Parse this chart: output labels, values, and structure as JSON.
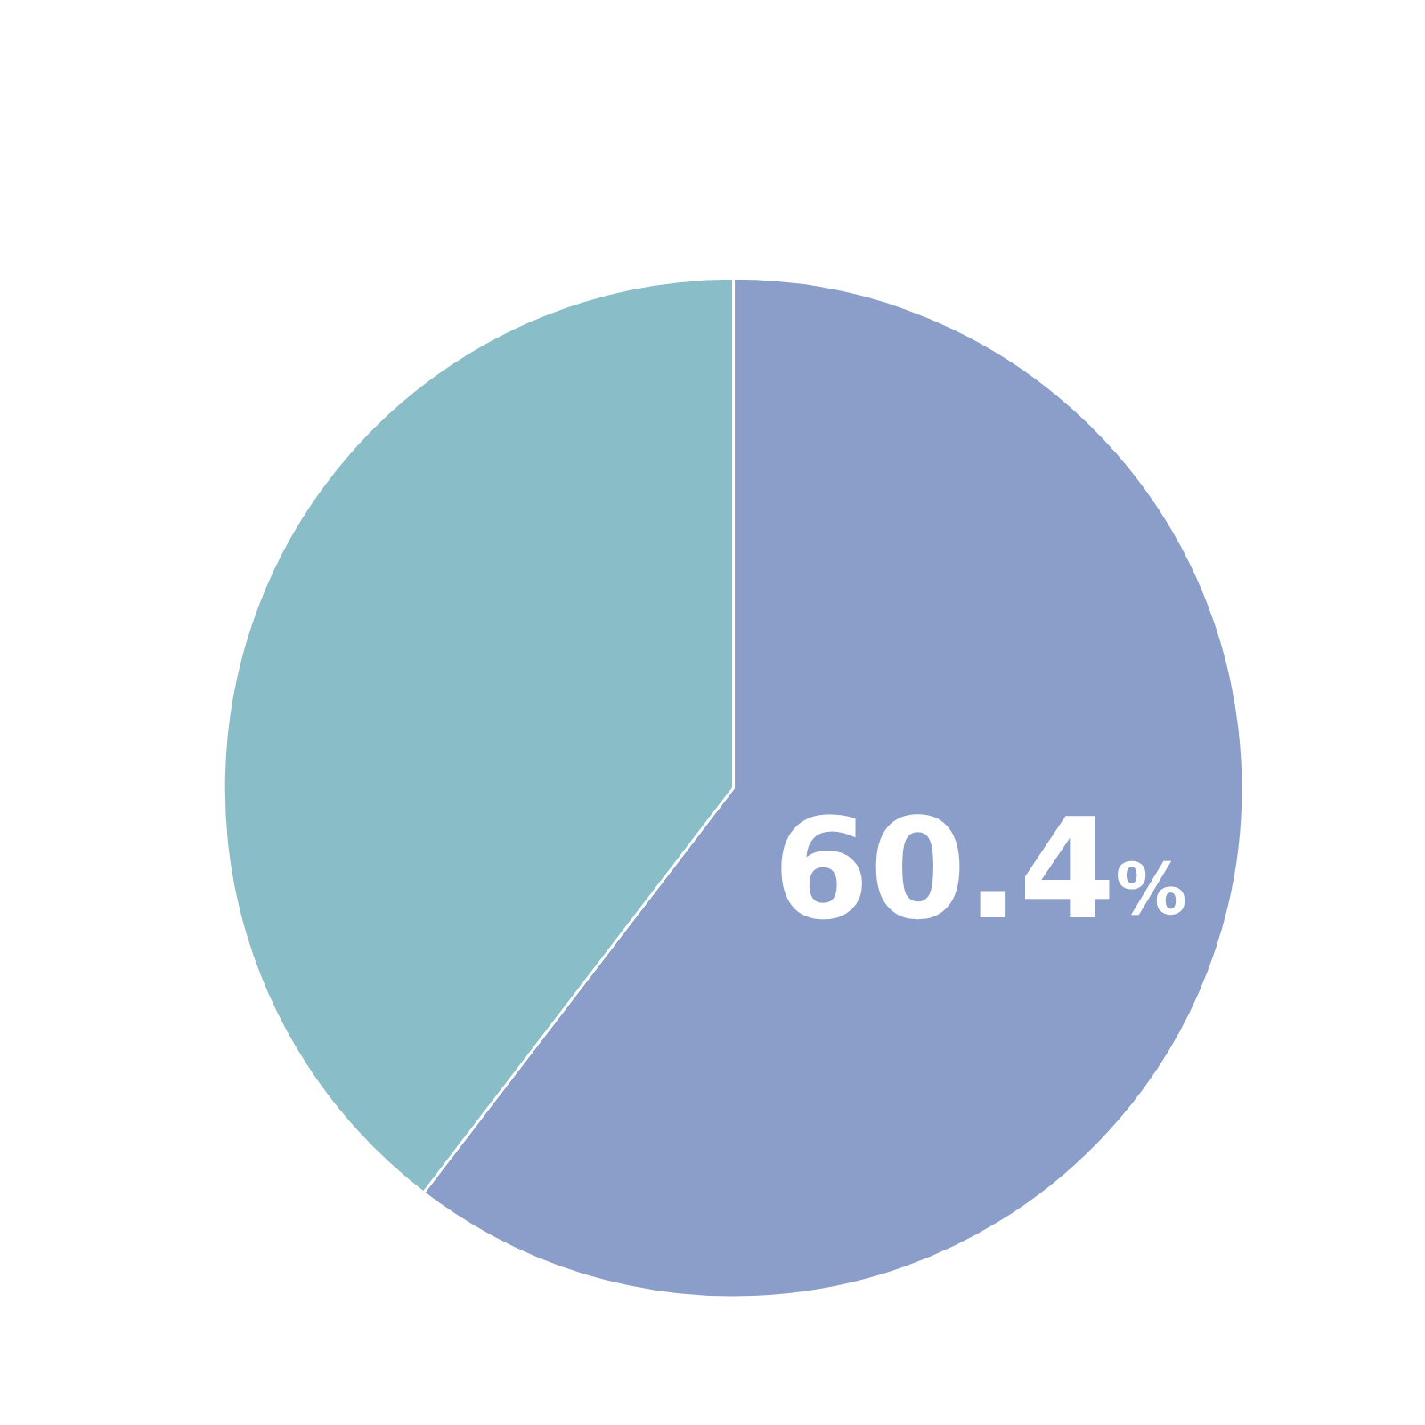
{
  "chart_data": {
    "type": "pie",
    "categories": [
      null,
      null
    ],
    "values": [
      60.4,
      39.6
    ],
    "colors": [
      "#8b9ec9",
      "#89bdc7"
    ],
    "value_labels": [
      "60.4%",
      null
    ]
  }
}
